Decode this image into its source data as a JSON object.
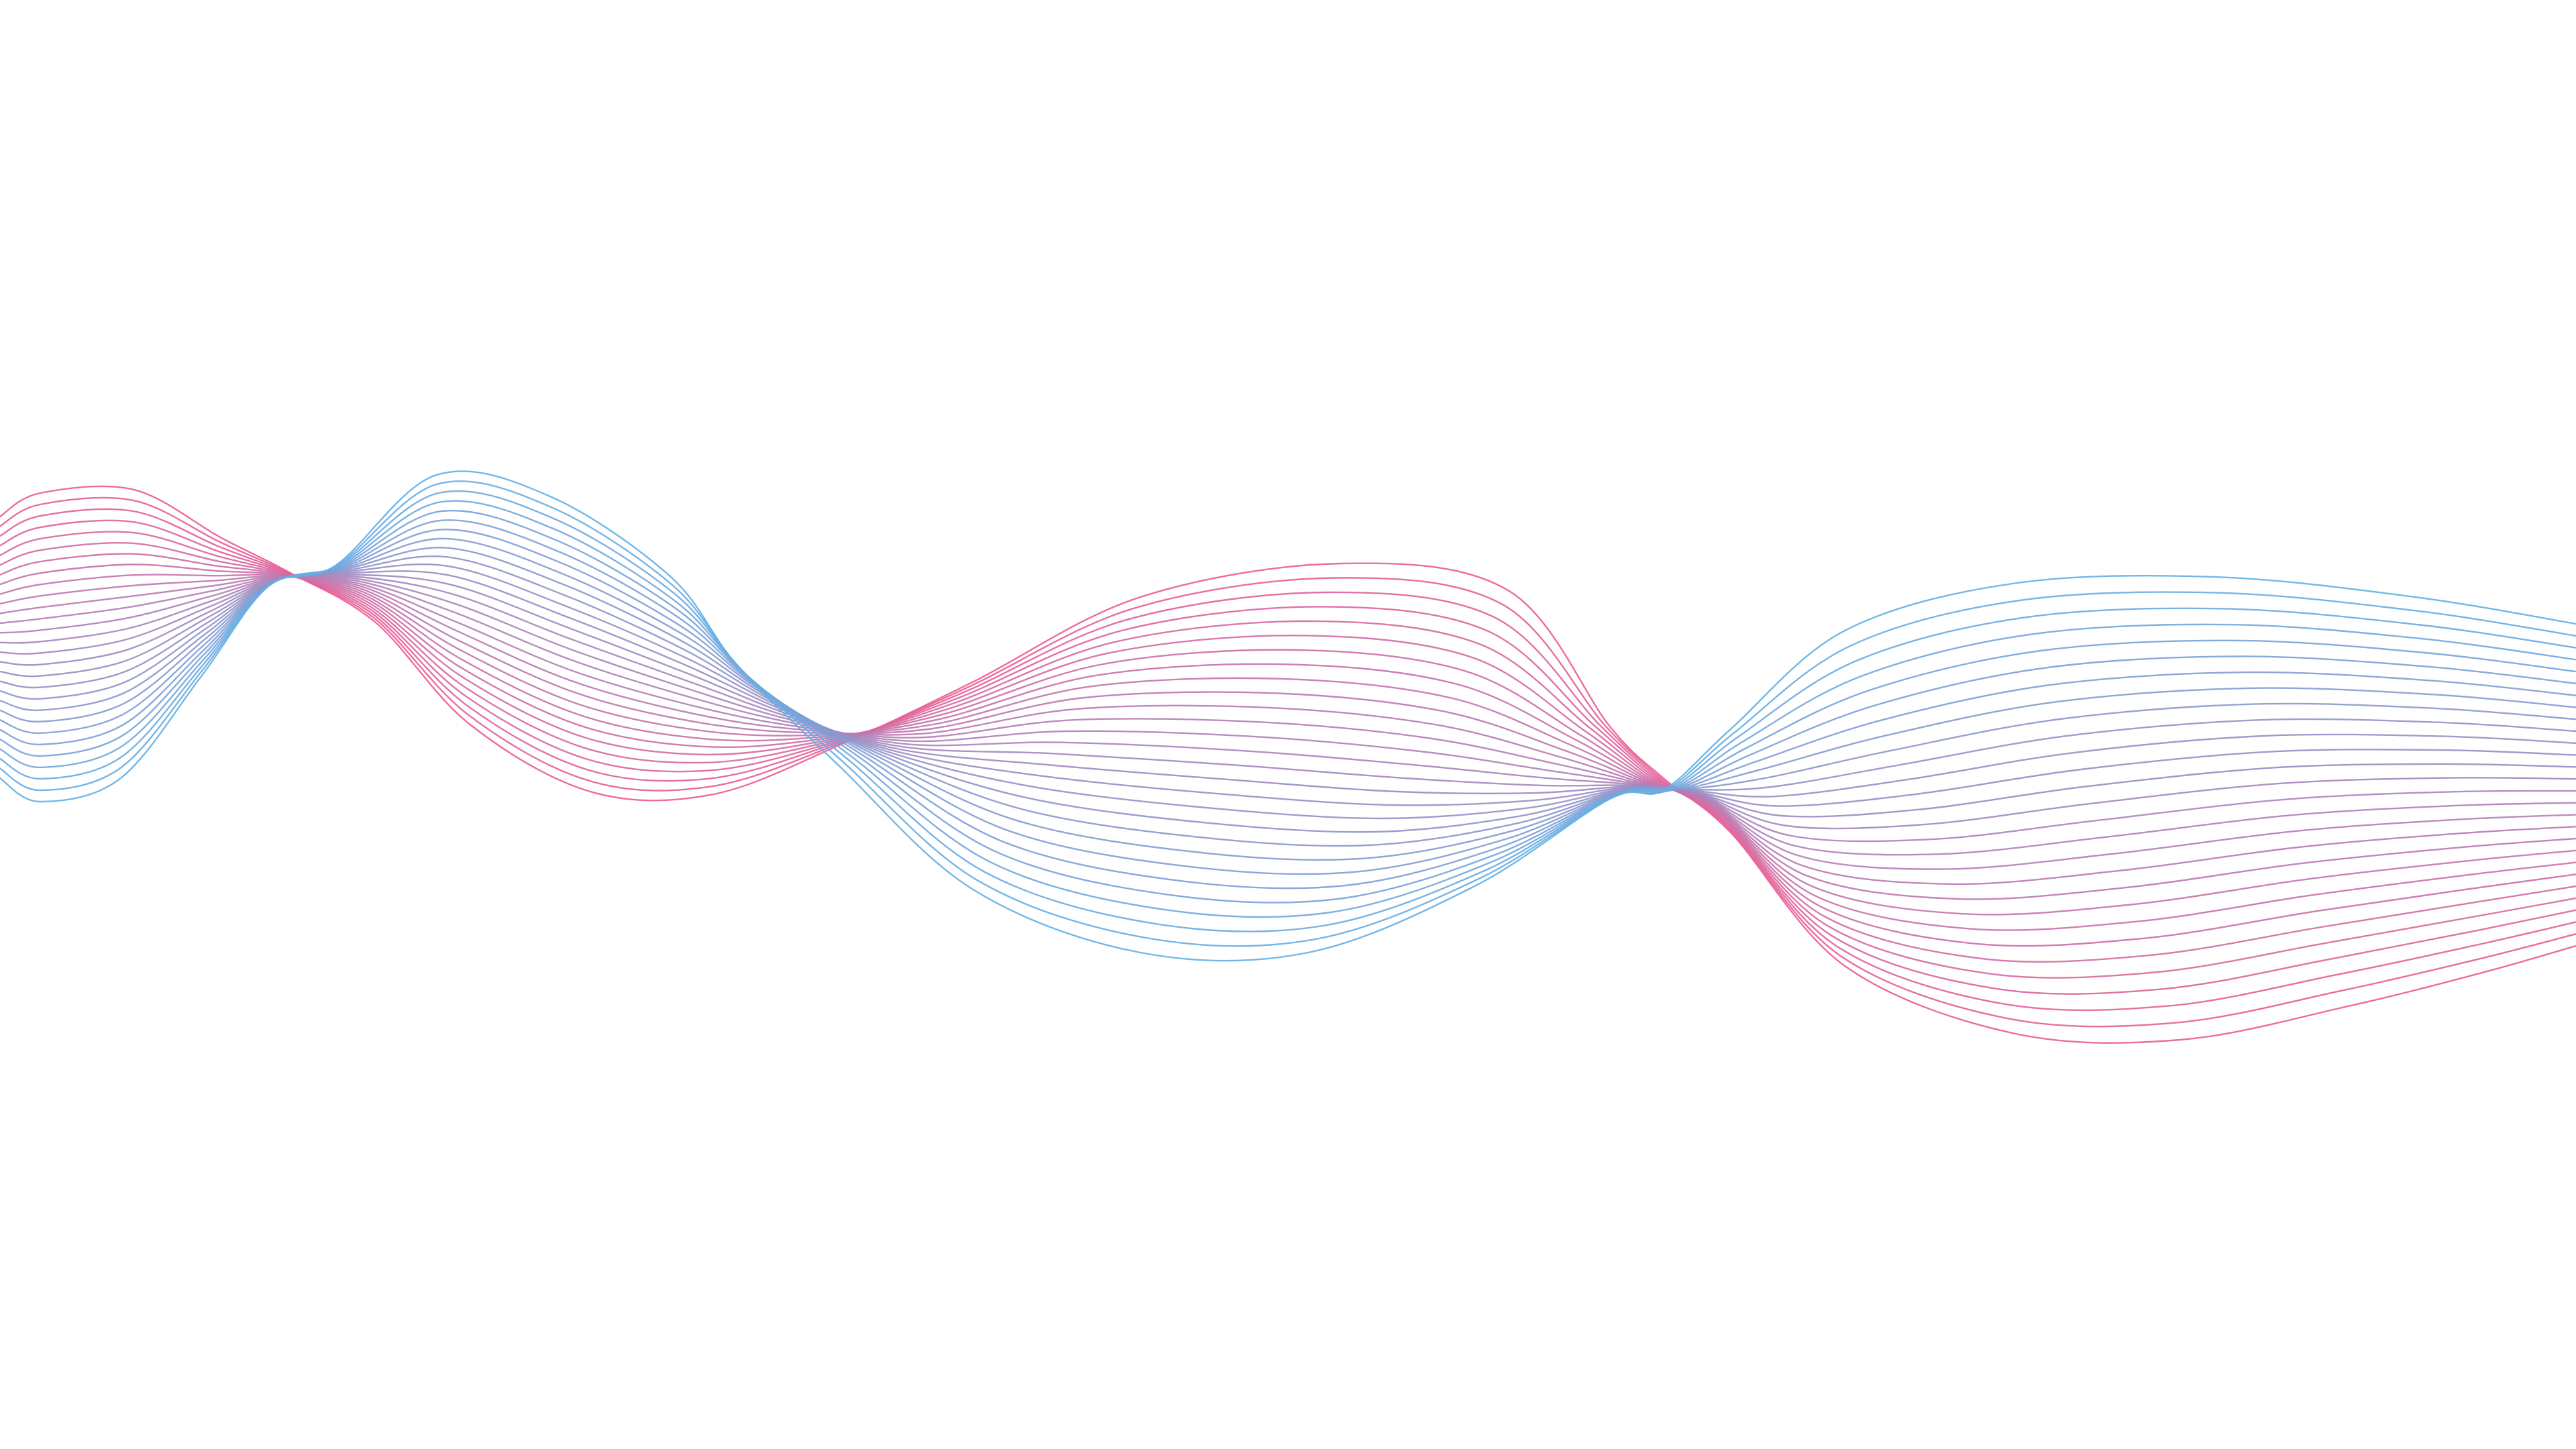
{
  "artwork": {
    "type": "abstract-line-wave",
    "background_color": "#ffffff",
    "line_count": 28,
    "palette": {
      "pink": "#ec5b93",
      "blue": "#62b0e6",
      "mid": "#a584c8"
    }
  }
}
